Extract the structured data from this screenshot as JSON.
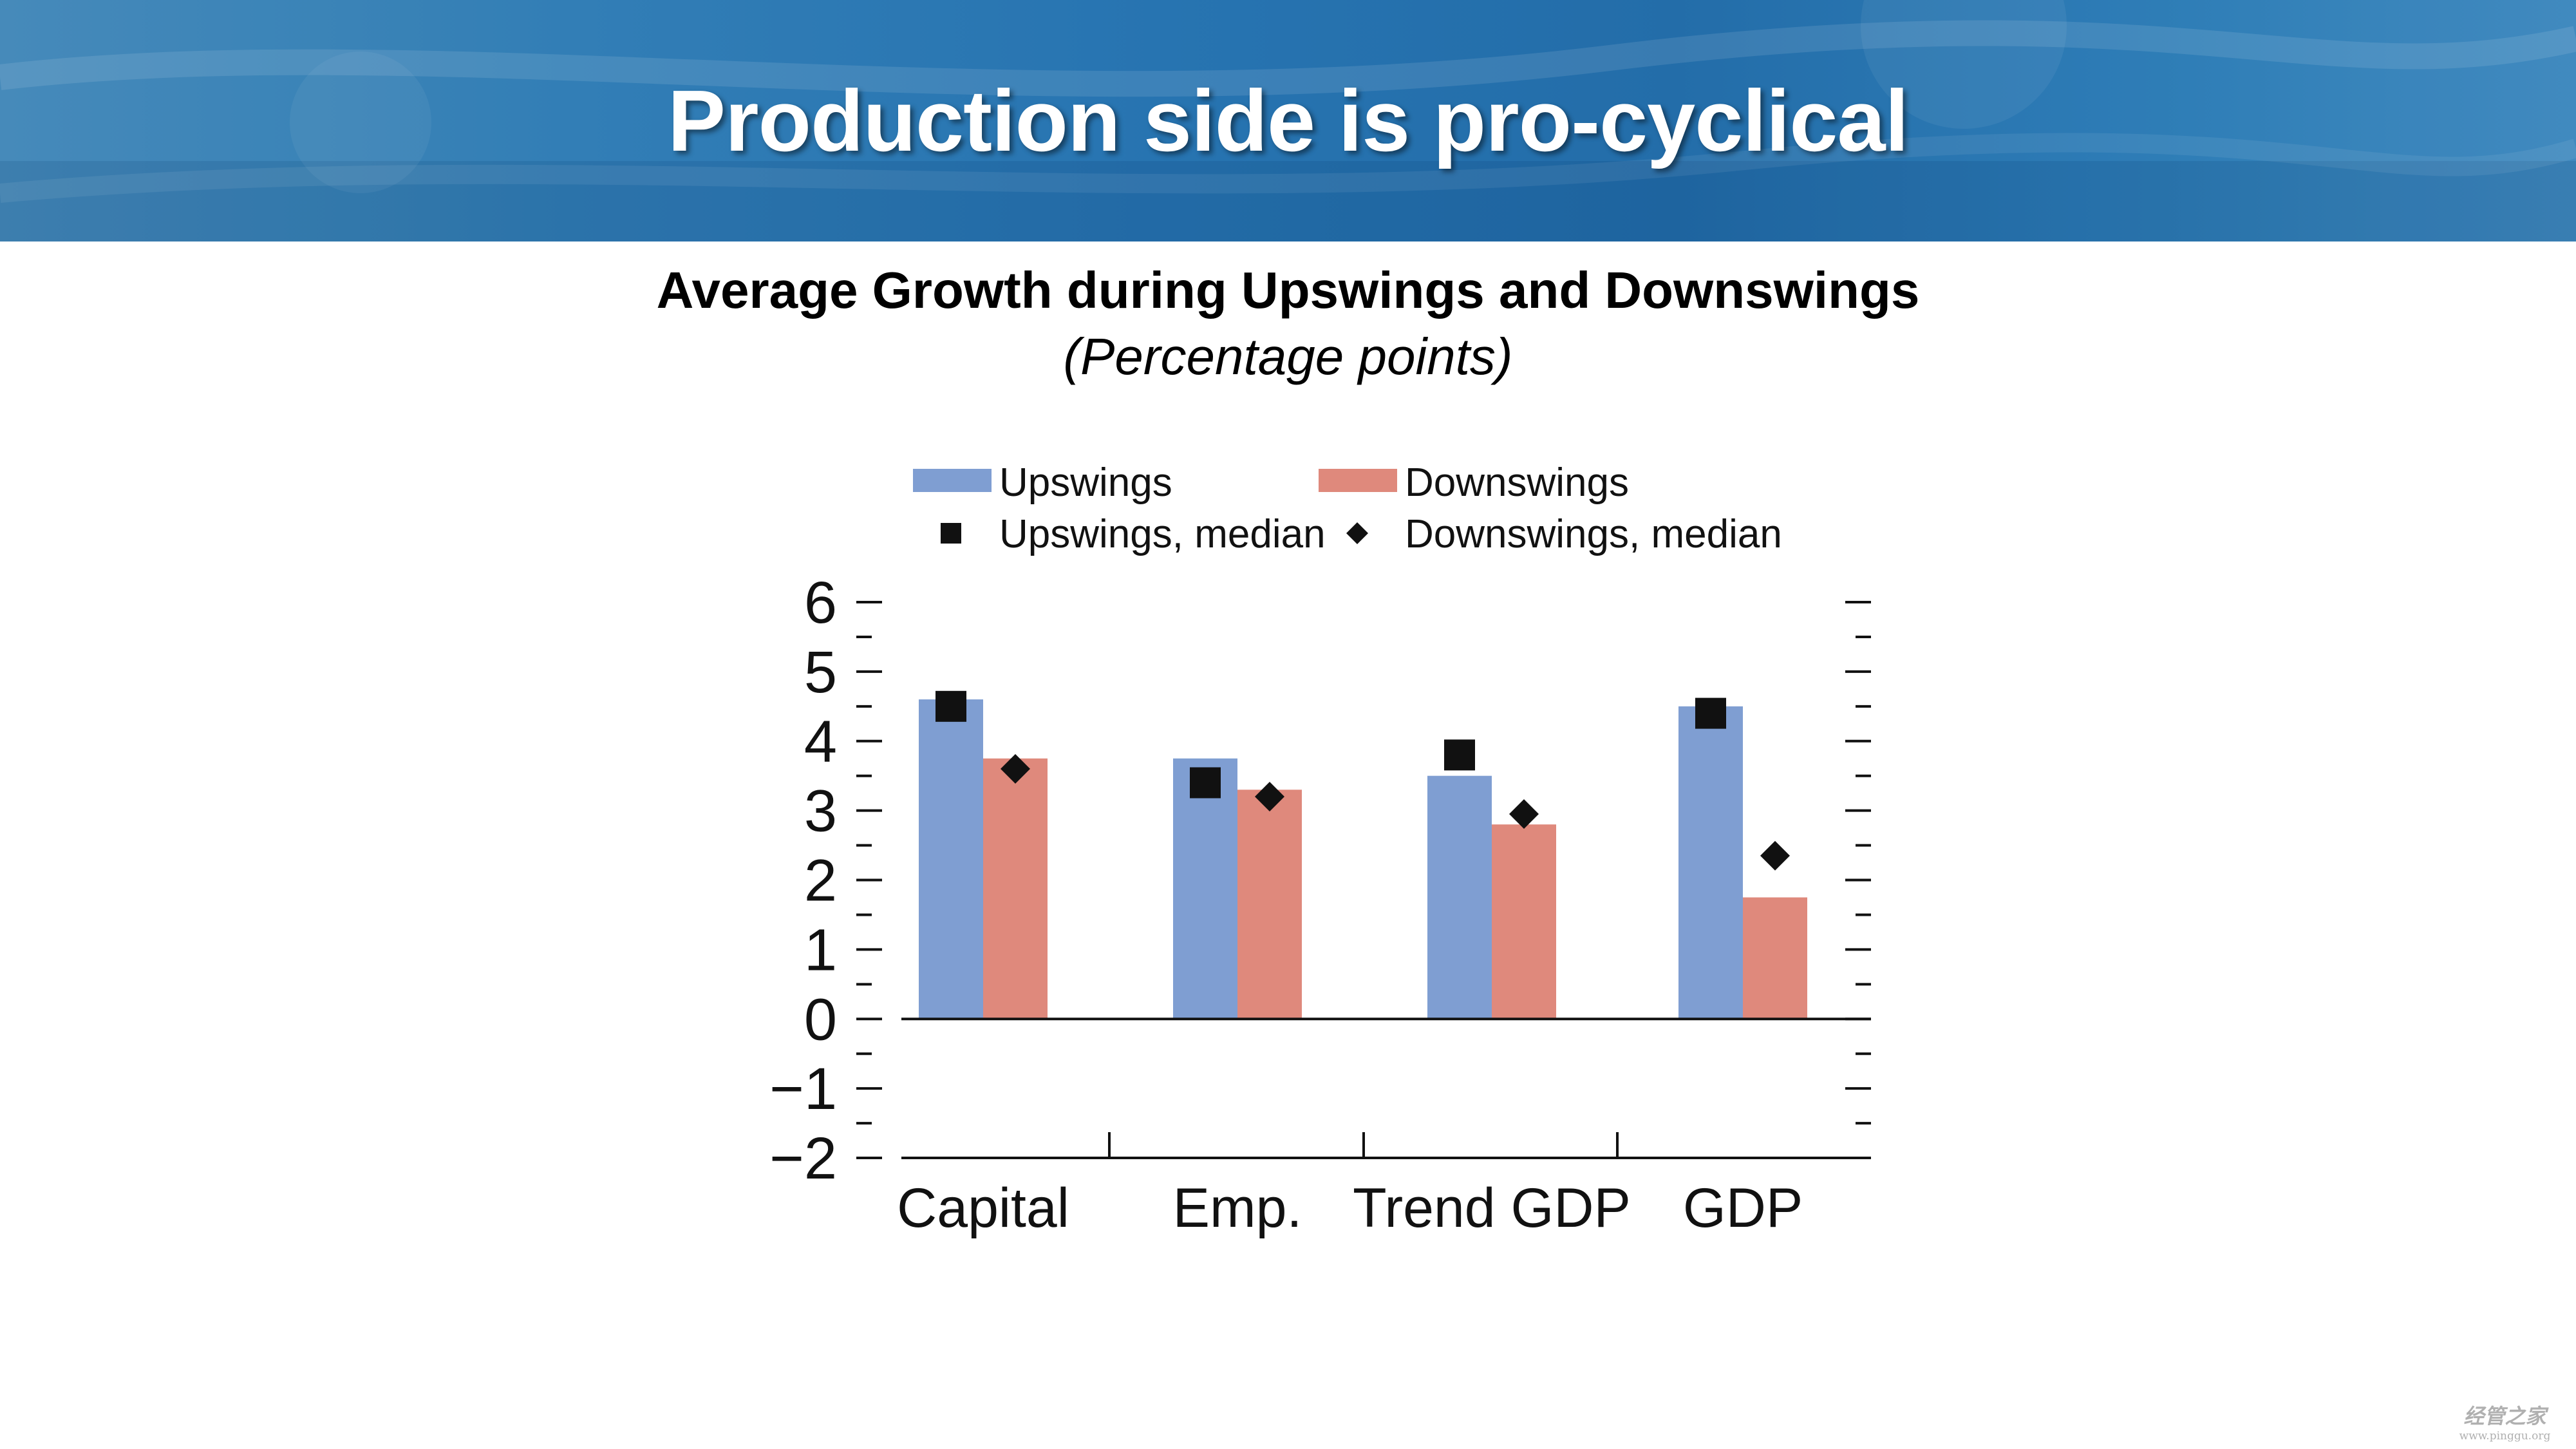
{
  "slide": {
    "title": "Production side is pro-cyclical"
  },
  "colors": {
    "banner": "#1f6fae",
    "upswings": "#7f9ed2",
    "downswings": "#df897c",
    "marker": "#111111"
  },
  "watermark": {
    "text": "经管之家",
    "url": "www.pinggu.org"
  },
  "chart_data": {
    "type": "bar",
    "title": "Average Growth during Upswings and Downswings",
    "subtitle": "(Percentage points)",
    "xlabel": "",
    "ylabel": "",
    "categories": [
      "Capital",
      "Emp.",
      "Trend GDP",
      "GDP"
    ],
    "series": [
      {
        "name": "Upswings",
        "kind": "bar",
        "color": "#7f9ed2",
        "values": [
          4.6,
          3.75,
          3.5,
          4.5
        ]
      },
      {
        "name": "Downswings",
        "kind": "bar",
        "color": "#df897c",
        "values": [
          3.75,
          3.3,
          2.8,
          1.75
        ]
      },
      {
        "name": "Upswings, median",
        "kind": "marker",
        "marker": "square",
        "values": [
          4.5,
          3.4,
          3.8,
          4.4
        ]
      },
      {
        "name": "Downswings, median",
        "kind": "marker",
        "marker": "diamond",
        "values": [
          3.6,
          3.2,
          2.95,
          2.35
        ]
      }
    ],
    "ylim": [
      -2,
      6
    ],
    "yticks": [
      "6",
      "5",
      "4",
      "3",
      "2",
      "1",
      "0",
      "−1",
      "−2"
    ],
    "minor_ticks": true,
    "grid": false,
    "legend_position": "top"
  }
}
